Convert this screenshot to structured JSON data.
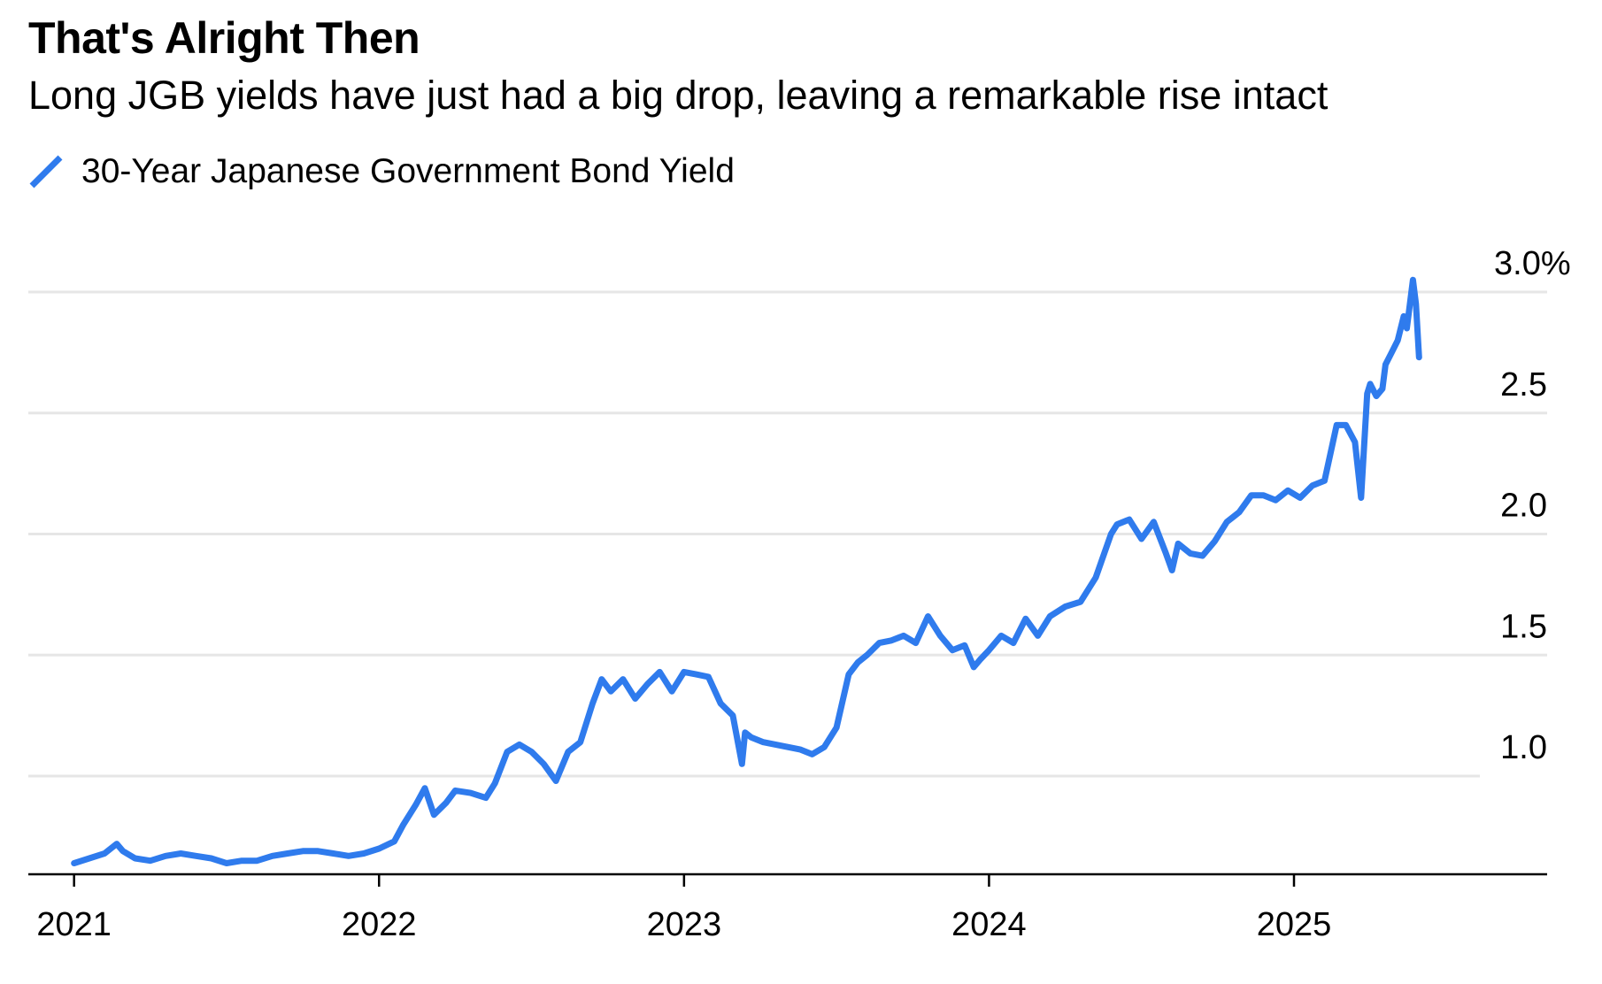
{
  "header": {
    "title": "That's Alright Then",
    "subtitle": "Long JGB yields have just had a big drop, leaving a remarkable rise intact"
  },
  "legend": {
    "label": "30-Year Japanese Government Bond Yield",
    "icon": "diagonal-line-icon"
  },
  "colors": {
    "series": "#2f7bed",
    "grid": "#e6e6e6",
    "axis": "#000000"
  },
  "chart_data": {
    "type": "line",
    "title": "That's Alright Then",
    "subtitle": "Long JGB yields have just had a big drop, leaving a remarkable rise intact",
    "xlabel": "",
    "ylabel": "",
    "x_tick_labels": [
      "2021",
      "2022",
      "2023",
      "2024",
      "2025"
    ],
    "y_tick_labels": [
      "3.0%",
      "2.5",
      "2.0",
      "1.5",
      "1.0"
    ],
    "y_ticks": [
      3.0,
      2.5,
      2.0,
      1.5,
      1.0
    ],
    "ylim": [
      0.5,
      3.0
    ],
    "xlim": [
      2020.85,
      2025.83
    ],
    "grid": true,
    "legend_position": "top-left",
    "series": [
      {
        "name": "30-Year Japanese Government Bond Yield",
        "color": "#2f7bed",
        "x": [
          2021.0,
          2021.05,
          2021.1,
          2021.14,
          2021.16,
          2021.2,
          2021.25,
          2021.3,
          2021.35,
          2021.4,
          2021.45,
          2021.5,
          2021.55,
          2021.6,
          2021.65,
          2021.7,
          2021.75,
          2021.8,
          2021.85,
          2021.9,
          2021.95,
          2022.0,
          2022.05,
          2022.08,
          2022.12,
          2022.15,
          2022.18,
          2022.22,
          2022.25,
          2022.3,
          2022.35,
          2022.38,
          2022.42,
          2022.46,
          2022.5,
          2022.54,
          2022.58,
          2022.62,
          2022.66,
          2022.7,
          2022.73,
          2022.76,
          2022.8,
          2022.84,
          2022.88,
          2022.92,
          2022.96,
          2023.0,
          2023.04,
          2023.08,
          2023.12,
          2023.16,
          2023.19,
          2023.2,
          2023.22,
          2023.26,
          2023.3,
          2023.34,
          2023.38,
          2023.42,
          2023.46,
          2023.5,
          2023.54,
          2023.57,
          2023.6,
          2023.64,
          2023.68,
          2023.72,
          2023.76,
          2023.8,
          2023.84,
          2023.88,
          2023.92,
          2023.95,
          2023.97,
          2024.0,
          2024.04,
          2024.08,
          2024.12,
          2024.16,
          2024.2,
          2024.25,
          2024.3,
          2024.35,
          2024.4,
          2024.42,
          2024.46,
          2024.5,
          2024.54,
          2024.58,
          2024.6,
          2024.62,
          2024.66,
          2024.7,
          2024.74,
          2024.78,
          2024.82,
          2024.86,
          2024.9,
          2024.94,
          2024.98,
          2025.02,
          2025.06,
          2025.1,
          2025.14,
          2025.17,
          2025.2,
          2025.22,
          2025.24,
          2025.25,
          2025.27,
          2025.29,
          2025.3,
          2025.32,
          2025.34,
          2025.36,
          2025.37,
          2025.39,
          2025.4,
          2025.41
        ],
        "y": [
          0.64,
          0.66,
          0.68,
          0.72,
          0.69,
          0.66,
          0.65,
          0.67,
          0.68,
          0.67,
          0.66,
          0.64,
          0.65,
          0.65,
          0.67,
          0.68,
          0.69,
          0.69,
          0.68,
          0.67,
          0.68,
          0.7,
          0.73,
          0.8,
          0.88,
          0.95,
          0.84,
          0.89,
          0.94,
          0.93,
          0.91,
          0.97,
          1.1,
          1.13,
          1.1,
          1.05,
          0.98,
          1.1,
          1.14,
          1.3,
          1.4,
          1.35,
          1.4,
          1.32,
          1.38,
          1.43,
          1.35,
          1.43,
          1.42,
          1.41,
          1.3,
          1.25,
          1.05,
          1.18,
          1.16,
          1.14,
          1.13,
          1.12,
          1.11,
          1.09,
          1.12,
          1.2,
          1.42,
          1.47,
          1.5,
          1.55,
          1.56,
          1.58,
          1.55,
          1.66,
          1.58,
          1.52,
          1.54,
          1.45,
          1.48,
          1.52,
          1.58,
          1.55,
          1.65,
          1.58,
          1.66,
          1.7,
          1.72,
          1.82,
          2.0,
          2.04,
          2.06,
          1.98,
          2.05,
          1.92,
          1.85,
          1.96,
          1.92,
          1.91,
          1.97,
          2.05,
          2.09,
          2.16,
          2.16,
          2.14,
          2.18,
          2.15,
          2.2,
          2.22,
          2.45,
          2.45,
          2.38,
          2.15,
          2.58,
          2.62,
          2.57,
          2.6,
          2.7,
          2.75,
          2.8,
          2.9,
          2.85,
          3.05,
          2.95,
          2.73
        ]
      }
    ]
  }
}
